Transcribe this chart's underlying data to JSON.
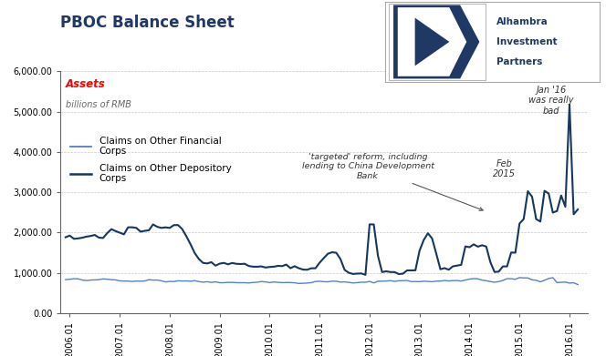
{
  "title": "PBOC Balance Sheet",
  "subtitle_bold": "Assets",
  "subtitle_italic": "billions of RMB",
  "ylim": [
    0,
    6000
  ],
  "yticks": [
    0,
    1000,
    2000,
    3000,
    4000,
    5000,
    6000
  ],
  "ytick_labels": [
    "0.00",
    "1,000.00",
    "2,000.00",
    "3,000.00",
    "4,000.00",
    "5,000.00",
    "6,000.00"
  ],
  "background_color": "#FFFFFF",
  "plot_bg_color": "#FFFFFF",
  "grid_color": "#BBBBBB",
  "line1_color": "#4472C4",
  "line2_color": "#17375E",
  "line1_label": "Claims on Other Financial\nCorps",
  "line2_label": "Claims on Other Depository\nCorps",
  "logo_box_color": "#CCCCCC",
  "logo_dark_blue": "#1F3864",
  "logo_text": [
    "Alhambra",
    "Investment",
    "Partners"
  ],
  "xtick_positions": [
    2006.0833,
    2007.0833,
    2008.0833,
    2009.0833,
    2010.0833,
    2011.0833,
    2012.0833,
    2013.0833,
    2014.0833,
    2015.0833,
    2016.0833
  ],
  "xtick_labels": [
    "2006.01",
    "2007.01",
    "2008.01",
    "2009.01",
    "2010.01",
    "2011.01",
    "2012.01",
    "2013.01",
    "2014.01",
    "2015.01",
    "2016.01"
  ],
  "xlim_start": 2005.9,
  "xlim_end": 2016.45
}
